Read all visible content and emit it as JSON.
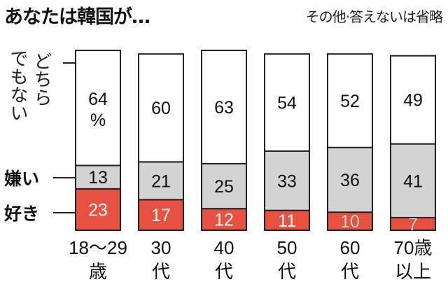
{
  "title": "あなたは韓国が…",
  "note": "その他·答えないは省略",
  "legend": {
    "neither_lines": [
      "どちら",
      "でもない"
    ],
    "dislike": "嫌い",
    "like": "好き"
  },
  "colors": {
    "like": "#e8513f",
    "dislike": "#d3d3d3",
    "neither": "#ffffff"
  },
  "chart_data": {
    "type": "bar",
    "stacked": true,
    "title": "あなたは韓国が…",
    "categories": [
      [
        "18〜29",
        "歳"
      ],
      [
        "30",
        "代"
      ],
      [
        "40",
        "代"
      ],
      [
        "50",
        "代"
      ],
      [
        "60",
        "代"
      ],
      [
        "70歳",
        "以上"
      ]
    ],
    "unit": "%",
    "series": [
      {
        "name": "好き",
        "values": [
          23,
          17,
          12,
          11,
          10,
          7
        ]
      },
      {
        "name": "嫌い",
        "values": [
          13,
          21,
          25,
          33,
          36,
          41
        ]
      },
      {
        "name": "どちらでもない",
        "values": [
          64,
          60,
          63,
          54,
          52,
          49
        ]
      }
    ],
    "ylim": [
      0,
      100
    ]
  }
}
